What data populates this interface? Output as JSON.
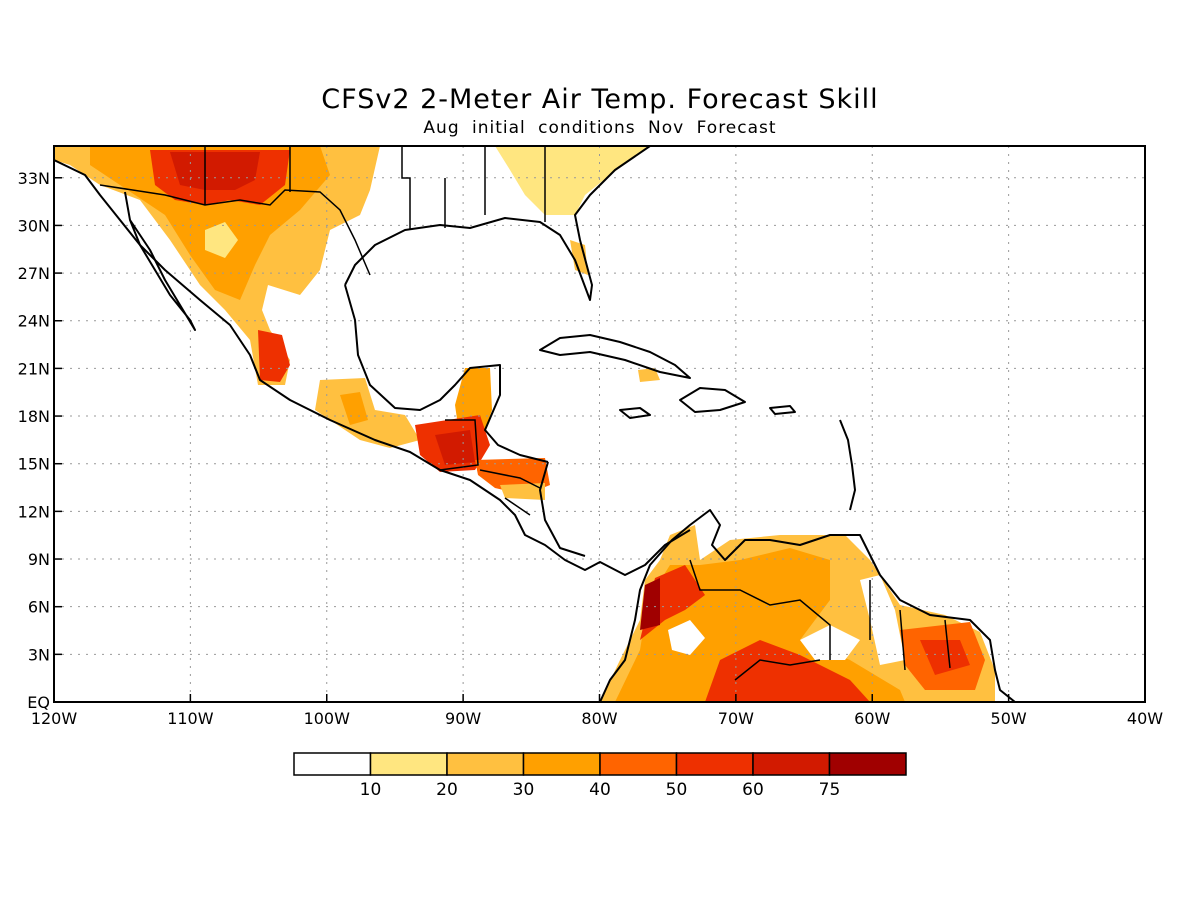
{
  "title": "CFSv2 2-Meter Air Temp. Forecast Skill",
  "subtitle": "Aug initial conditions  Nov Forecast",
  "map": {
    "lon_range": [
      -120,
      -40
    ],
    "lat_range": [
      0,
      35
    ],
    "lon_labels": [
      "120W",
      "110W",
      "100W",
      "90W",
      "80W",
      "70W",
      "60W",
      "50W",
      "40W"
    ],
    "lat_labels": [
      "EQ",
      "3N",
      "6N",
      "9N",
      "12N",
      "15N",
      "18N",
      "21N",
      "24N",
      "27N",
      "30N",
      "33N"
    ],
    "grid": "dotted"
  },
  "colorbar": {
    "labels": [
      "10",
      "20",
      "30",
      "40",
      "50",
      "60",
      "75"
    ],
    "colors": [
      "#ffffff",
      "#ffe680",
      "#ffc040",
      "#ffa000",
      "#ff6400",
      "#ee3000",
      "#d21a00",
      "#a00000"
    ]
  }
}
